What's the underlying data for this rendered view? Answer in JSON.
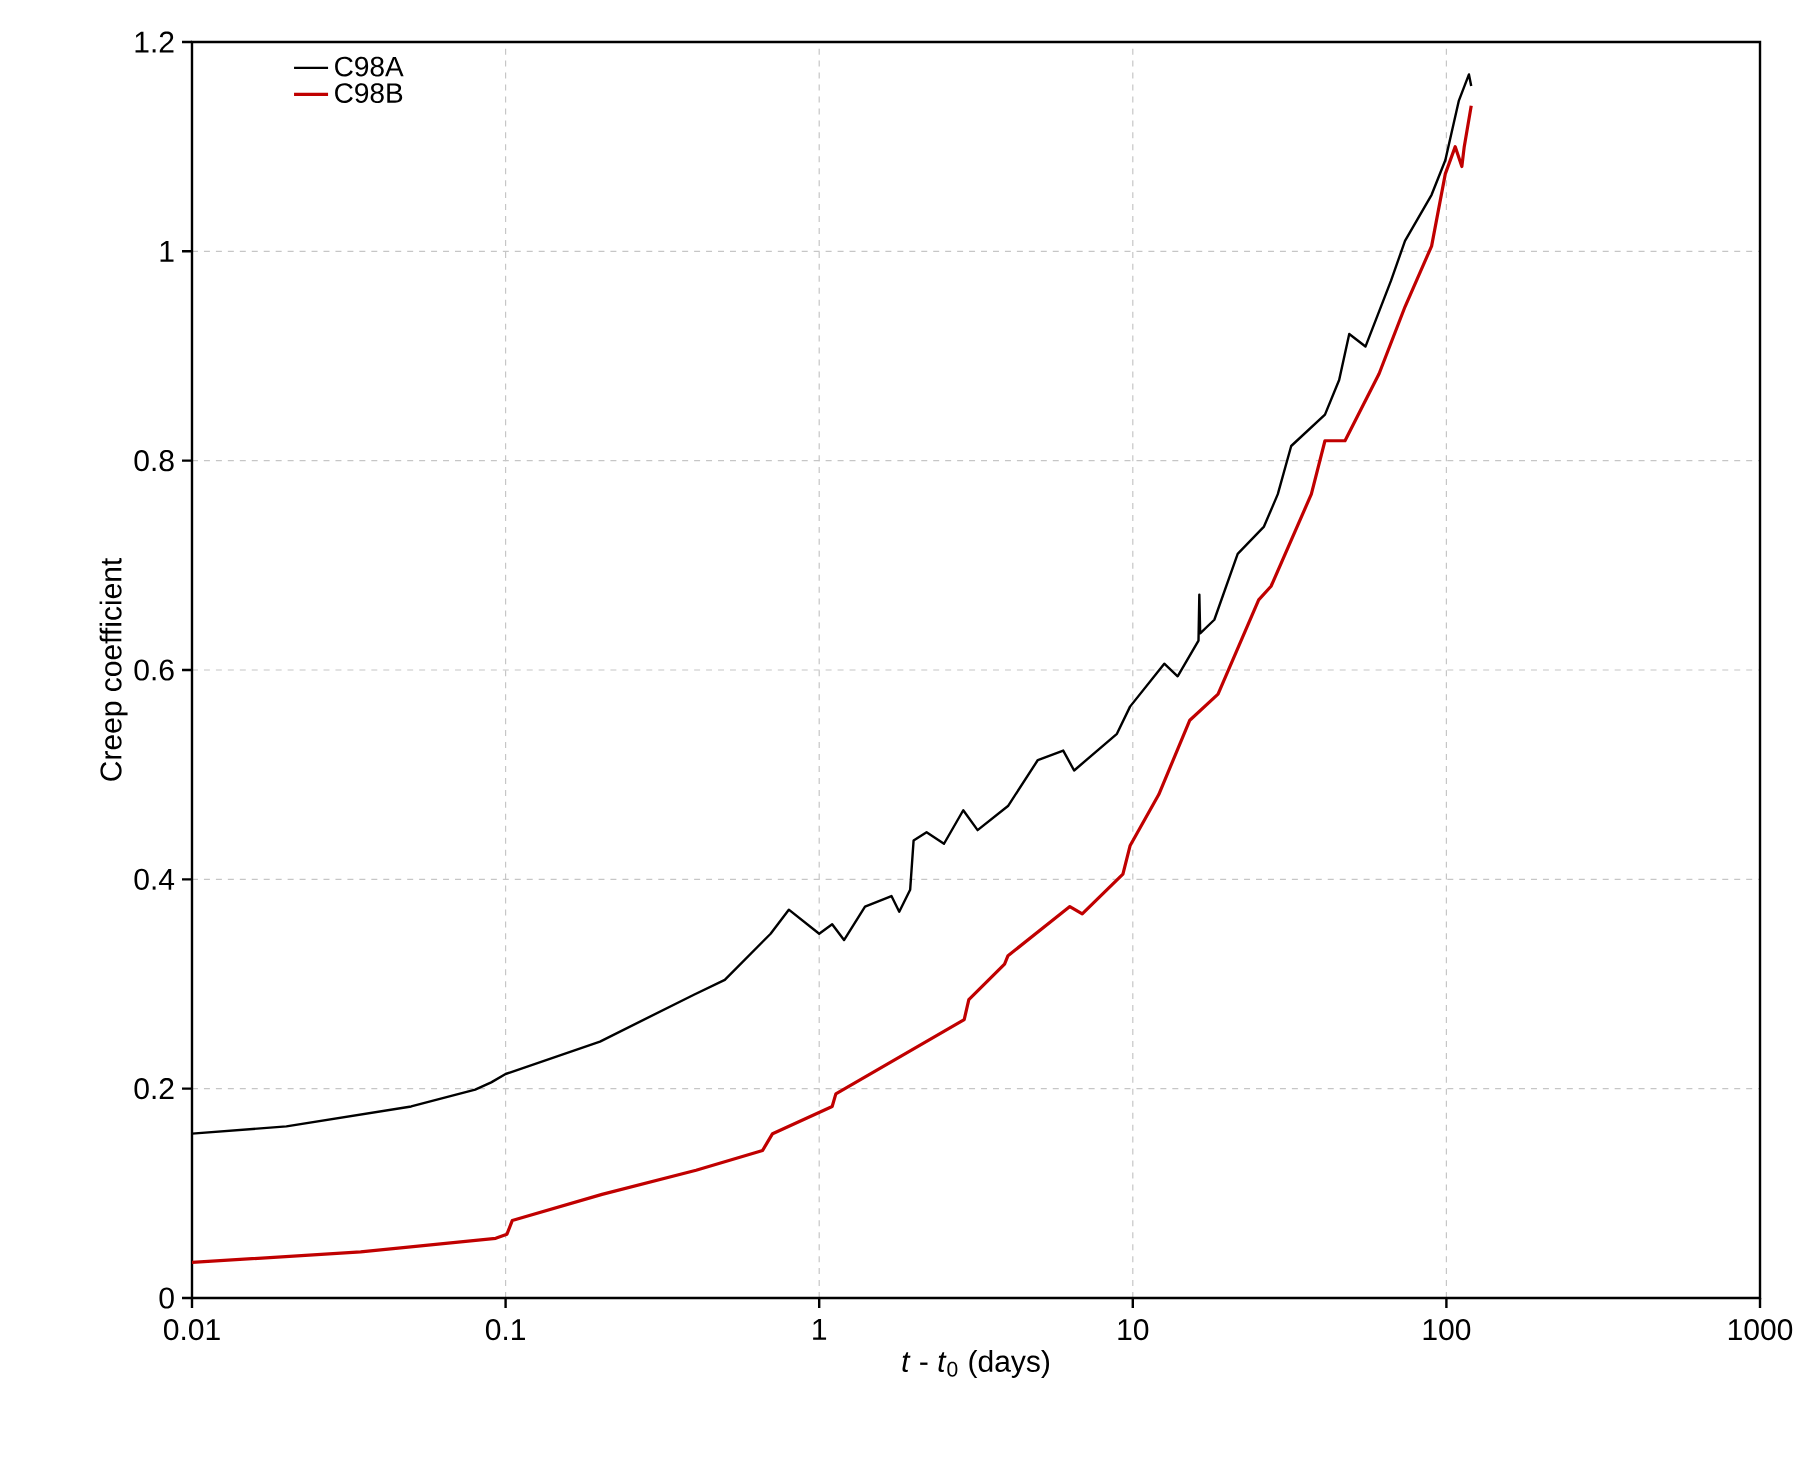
{
  "chart_data": {
    "type": "line",
    "xlabel": "*t* - *t*$_{0}$ (days)",
    "ylabel": "Creep coefficient",
    "log": "x",
    "grid": true,
    "legend": "top left",
    "line_style": "solid",
    "marker": "none",
    "xlim": [
      0.01,
      1000
    ],
    "ylim": [
      0,
      1.2
    ],
    "xticks": [
      0.01,
      0.1,
      1,
      10,
      100,
      1000
    ],
    "yticks": [
      0,
      0.2,
      0.4,
      0.6,
      0.8,
      1,
      1.2
    ],
    "series": [
      {
        "name": "C98A",
        "color": "#000000",
        "x": [
          0.01,
          0.02,
          0.05,
          0.08,
          0.09,
          0.1,
          0.2,
          0.4,
          0.5,
          0.7,
          0.8,
          1.0,
          1.1,
          1.2,
          1.4,
          1.7,
          1.8,
          1.95,
          2.0,
          2.2,
          2.5,
          2.88,
          3.2,
          4.0,
          4.98,
          6.0,
          6.5,
          8.9,
          9.8,
          12.6,
          13.9,
          16.2,
          16.3,
          16.4,
          18.2,
          21.6,
          26.2,
          29.0,
          32.0,
          41.0,
          45.5,
          49.0,
          55.2,
          66.6,
          73.8,
          89.7,
          99.2,
          109.6,
          118,
          120
        ],
        "values": [
          0.157,
          0.164,
          0.183,
          0.199,
          0.206,
          0.214,
          0.245,
          0.29,
          0.304,
          0.348,
          0.371,
          0.348,
          0.357,
          0.342,
          0.374,
          0.384,
          0.369,
          0.39,
          0.437,
          0.445,
          0.434,
          0.466,
          0.447,
          0.47,
          0.514,
          0.523,
          0.504,
          0.539,
          0.565,
          0.606,
          0.594,
          0.628,
          0.672,
          0.635,
          0.648,
          0.711,
          0.737,
          0.768,
          0.814,
          0.844,
          0.877,
          0.921,
          0.909,
          0.972,
          1.01,
          1.054,
          1.087,
          1.144,
          1.169,
          1.158
        ]
      },
      {
        "name": "C98B",
        "color": "#c00000",
        "x": [
          0.01,
          0.0345,
          0.093,
          0.101,
          0.105,
          0.203,
          0.405,
          0.66,
          0.71,
          1.1,
          1.13,
          2.9,
          3.0,
          3.9,
          4.0,
          6.3,
          6.9,
          9.3,
          9.8,
          12.1,
          15.2,
          18.7,
          25.2,
          27.6,
          37.1,
          41,
          47.5,
          61,
          73.8,
          89.7,
          99.2,
          106.7,
          112,
          114,
          120
        ],
        "values": [
          0.034,
          0.044,
          0.057,
          0.061,
          0.074,
          0.099,
          0.122,
          0.141,
          0.157,
          0.183,
          0.195,
          0.266,
          0.285,
          0.319,
          0.327,
          0.374,
          0.367,
          0.405,
          0.432,
          0.481,
          0.552,
          0.577,
          0.667,
          0.68,
          0.768,
          0.819,
          0.819,
          0.883,
          0.947,
          1.005,
          1.074,
          1.1,
          1.081,
          1.1,
          1.139
        ]
      }
    ]
  }
}
